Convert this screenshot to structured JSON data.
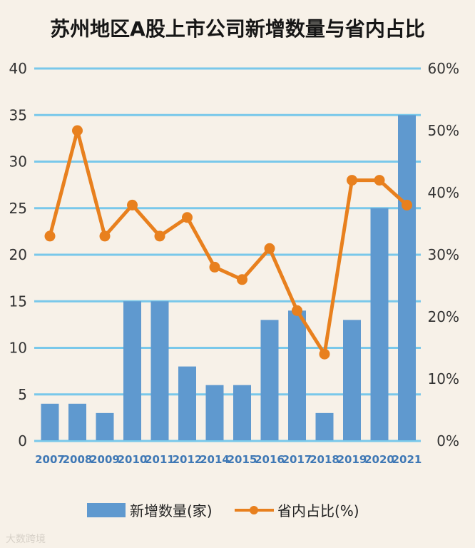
{
  "chart_data": {
    "type": "bar",
    "title": "苏州地区A股上市公司新增数量与省内占比",
    "categories": [
      "2007",
      "2008",
      "2009",
      "2010",
      "2011",
      "2012",
      "2014",
      "2015",
      "2016",
      "2017",
      "2018",
      "2019",
      "2020",
      "2021"
    ],
    "left_axis": {
      "ticks": [
        "0",
        "5",
        "10",
        "15",
        "20",
        "25",
        "30",
        "35",
        "40"
      ],
      "ylim": [
        0,
        40
      ]
    },
    "right_axis": {
      "ticks": [
        "0%",
        "10%",
        "20%",
        "30%",
        "40%",
        "50%",
        "60%"
      ],
      "ylim": [
        0,
        60
      ]
    },
    "series": [
      {
        "name": "新增数量(家)",
        "type": "bar",
        "values": [
          4,
          4,
          3,
          15,
          15,
          8,
          6,
          6,
          13,
          14,
          3,
          13,
          25,
          35
        ]
      },
      {
        "name": "省内占比(%)",
        "type": "line",
        "values": [
          33,
          50,
          33,
          38,
          33,
          36,
          28,
          26,
          31,
          21,
          14,
          42,
          42,
          38
        ]
      }
    ],
    "legend": [
      "新增数量(家)",
      "省内占比(%)"
    ],
    "grid": true,
    "colors": {
      "bar": "#5f99cf",
      "line": "#e8801e",
      "grid": "#79c8ea",
      "x_labels": "#3f78b5"
    }
  },
  "watermark": "大数跨境"
}
